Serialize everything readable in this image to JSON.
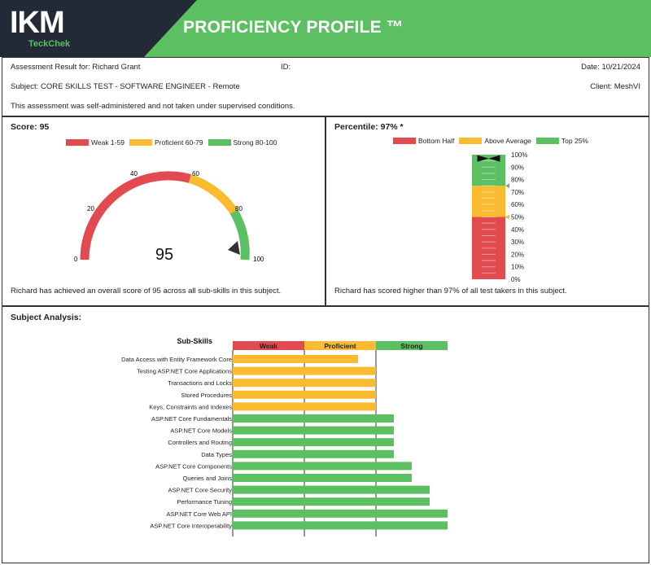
{
  "header": {
    "logo": "IKM",
    "logo_sub": "TeckChek",
    "title": "PROFICIENCY PROFILE ™"
  },
  "info": {
    "assessment": "Assessment Result for: Richard Grant",
    "id": "ID:",
    "date": "Date: 10/21/2024",
    "subject": "Subject: CORE SKILLS TEST - SOFTWARE ENGINEER - Remote",
    "client": "Client: MeshVI",
    "note": "This assessment was self-administered and not taken under supervised conditions."
  },
  "score": {
    "title": "Score: 95",
    "value": 95,
    "value_label": "95",
    "legend": [
      {
        "label": "Weak 1-59",
        "color": "#e14a4f"
      },
      {
        "label": "Proficient 60-79",
        "color": "#fbbb31"
      },
      {
        "label": "Strong 80-100",
        "color": "#5cbf61"
      }
    ],
    "ticks": [
      "0",
      "20",
      "40",
      "60",
      "80",
      "100"
    ],
    "footer": "Richard has achieved an overall score of 95 across all sub-skills in this subject."
  },
  "percentile": {
    "title": "Percentile: 97% *",
    "value": 97,
    "legend": [
      {
        "label": "Bottom Half",
        "color": "#e14a4f"
      },
      {
        "label": "Above Average",
        "color": "#fbbb31"
      },
      {
        "label": "Top 25%",
        "color": "#5cbf61"
      }
    ],
    "ticks": [
      "100%",
      "90%",
      "80%",
      "70%",
      "60%",
      "50%",
      "40%",
      "30%",
      "20%",
      "10%",
      "0%"
    ],
    "footer": "Richard has scored higher than 97% of all test takers in this subject."
  },
  "subject": {
    "title": "Subject Analysis:",
    "column_header": "Sub-Skills",
    "bands": [
      {
        "label": "Weak",
        "color": "#e14a4f"
      },
      {
        "label": "Proficient",
        "color": "#fbbb31"
      },
      {
        "label": "Strong",
        "color": "#5cbf61"
      }
    ]
  },
  "chart_data": {
    "type": "bar",
    "orientation": "horizontal",
    "categories": [
      "Data Access with Entity Framework Core",
      "Testing ASP.NET Core Applications",
      "Transactions and Locks",
      "Stored Procedures",
      "Keys, Constraints and Indexes",
      "ASP.NET Core Fundamentals",
      "ASP.NET Core Models",
      "Controllers and Routing",
      "Data Types",
      "ASP.NET Core Components",
      "Queries and Joins",
      "ASP.NET Core Security",
      "Performance Tuning",
      "ASP.NET Core Web API",
      "ASP.NET Core Interoperability"
    ],
    "values": [
      3.75,
      4.0,
      4.0,
      4.0,
      4.0,
      4.25,
      4.25,
      4.25,
      4.25,
      4.5,
      4.5,
      4.75,
      4.75,
      5.0,
      5.0
    ],
    "levels": [
      "Proficient",
      "Proficient",
      "Proficient",
      "Proficient",
      "Proficient",
      "Strong",
      "Strong",
      "Strong",
      "Strong",
      "Strong",
      "Strong",
      "Strong",
      "Strong",
      "Strong",
      "Strong"
    ],
    "xlim": [
      2,
      5
    ]
  }
}
